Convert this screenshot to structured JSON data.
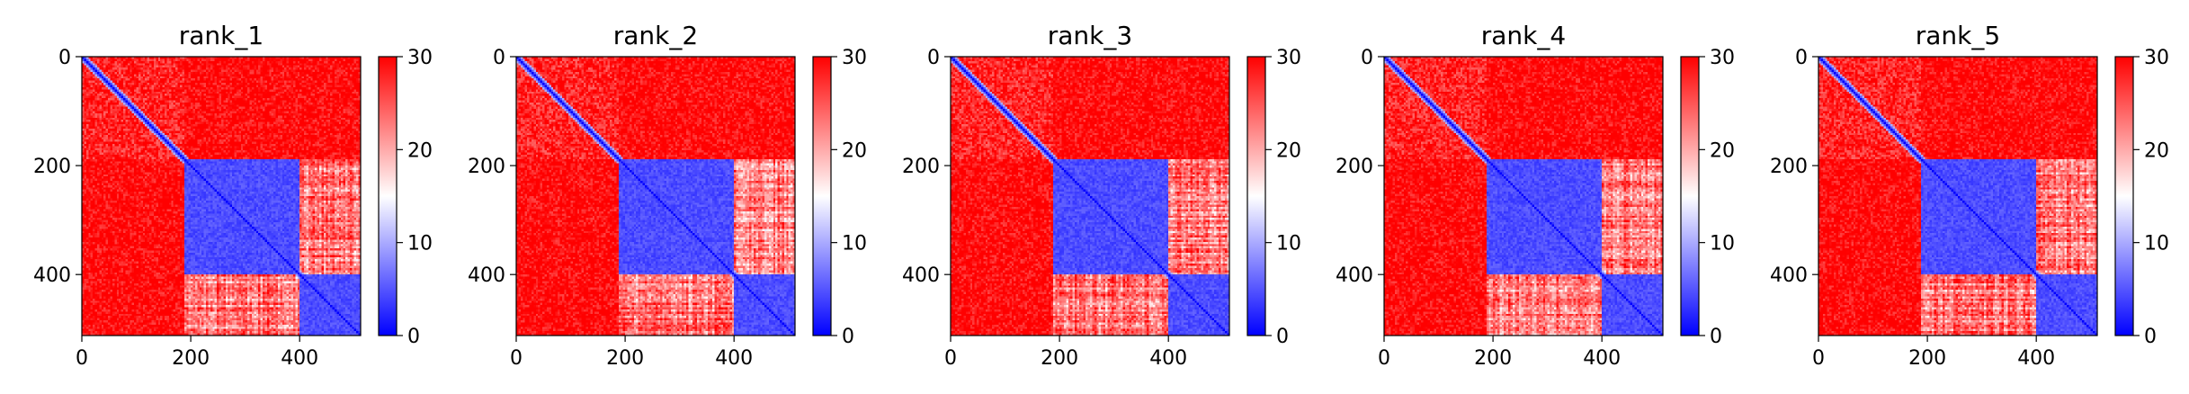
{
  "chart_data": [
    {
      "type": "heatmap",
      "title": "rank_1",
      "x_range": [
        0,
        512
      ],
      "y_range": [
        0,
        512
      ],
      "y_inverted": true,
      "x_ticks": [
        0,
        200,
        400
      ],
      "y_ticks": [
        0,
        200,
        400
      ],
      "colorbar": {
        "range": [
          0,
          30
        ],
        "ticks": [
          0,
          10,
          20,
          30
        ]
      },
      "colormap": [
        "#0000ff",
        "#ffffff",
        "#ff0000"
      ],
      "blocks": [
        {
          "from": 0,
          "to": 190,
          "level": "high"
        },
        {
          "from": 190,
          "to": 400,
          "level": "low"
        },
        {
          "from": 400,
          "to": 512,
          "level": "low"
        }
      ],
      "seed": 11
    },
    {
      "type": "heatmap",
      "title": "rank_2",
      "x_range": [
        0,
        512
      ],
      "y_range": [
        0,
        512
      ],
      "y_inverted": true,
      "x_ticks": [
        0,
        200,
        400
      ],
      "y_ticks": [
        0,
        200,
        400
      ],
      "colorbar": {
        "range": [
          0,
          30
        ],
        "ticks": [
          0,
          10,
          20,
          30
        ]
      },
      "colormap": [
        "#0000ff",
        "#ffffff",
        "#ff0000"
      ],
      "blocks": [
        {
          "from": 0,
          "to": 190,
          "level": "high"
        },
        {
          "from": 190,
          "to": 400,
          "level": "low"
        },
        {
          "from": 400,
          "to": 512,
          "level": "low"
        }
      ],
      "seed": 23
    },
    {
      "type": "heatmap",
      "title": "rank_3",
      "x_range": [
        0,
        512
      ],
      "y_range": [
        0,
        512
      ],
      "y_inverted": true,
      "x_ticks": [
        0,
        200,
        400
      ],
      "y_ticks": [
        0,
        200,
        400
      ],
      "colorbar": {
        "range": [
          0,
          30
        ],
        "ticks": [
          0,
          10,
          20,
          30
        ]
      },
      "colormap": [
        "#0000ff",
        "#ffffff",
        "#ff0000"
      ],
      "blocks": [
        {
          "from": 0,
          "to": 190,
          "level": "high"
        },
        {
          "from": 190,
          "to": 400,
          "level": "low"
        },
        {
          "from": 400,
          "to": 512,
          "level": "low"
        }
      ],
      "seed": 37
    },
    {
      "type": "heatmap",
      "title": "rank_4",
      "x_range": [
        0,
        512
      ],
      "y_range": [
        0,
        512
      ],
      "y_inverted": true,
      "x_ticks": [
        0,
        200,
        400
      ],
      "y_ticks": [
        0,
        200,
        400
      ],
      "colorbar": {
        "range": [
          0,
          30
        ],
        "ticks": [
          0,
          10,
          20,
          30
        ]
      },
      "colormap": [
        "#0000ff",
        "#ffffff",
        "#ff0000"
      ],
      "blocks": [
        {
          "from": 0,
          "to": 190,
          "level": "high"
        },
        {
          "from": 190,
          "to": 400,
          "level": "low"
        },
        {
          "from": 400,
          "to": 512,
          "level": "low"
        }
      ],
      "seed": 41
    },
    {
      "type": "heatmap",
      "title": "rank_5",
      "x_range": [
        0,
        512
      ],
      "y_range": [
        0,
        512
      ],
      "y_inverted": true,
      "x_ticks": [
        0,
        200,
        400
      ],
      "y_ticks": [
        0,
        200,
        400
      ],
      "colorbar": {
        "range": [
          0,
          30
        ],
        "ticks": [
          0,
          10,
          20,
          30
        ]
      },
      "colormap": [
        "#0000ff",
        "#ffffff",
        "#ff0000"
      ],
      "blocks": [
        {
          "from": 0,
          "to": 190,
          "level": "high"
        },
        {
          "from": 190,
          "to": 400,
          "level": "low"
        },
        {
          "from": 400,
          "to": 512,
          "level": "low"
        }
      ],
      "seed": 53
    }
  ]
}
